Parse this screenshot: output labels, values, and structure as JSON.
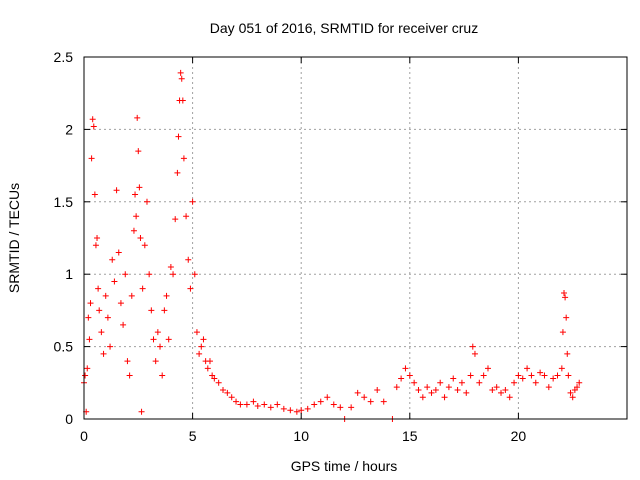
{
  "chart_data": {
    "type": "scatter",
    "title": "Day 051 of 2016, SRMTID for receiver cruz",
    "xlabel": "GPS time / hours",
    "ylabel": "SRMTID / TECUs",
    "xlim": [
      0,
      25
    ],
    "ylim": [
      0,
      2.5
    ],
    "xticks": [
      "0",
      "5",
      "10",
      "15",
      "20"
    ],
    "yticks": [
      "0",
      "0.5",
      "1",
      "1.5",
      "2",
      "2.5"
    ],
    "grid": true,
    "marker": "plus",
    "color": "#ff0000",
    "series": [
      {
        "name": "SRMTID",
        "points": [
          [
            0.0,
            0.25
          ],
          [
            0.05,
            0.3
          ],
          [
            0.1,
            0.05
          ],
          [
            0.15,
            0.35
          ],
          [
            0.2,
            0.7
          ],
          [
            0.25,
            0.55
          ],
          [
            0.3,
            0.8
          ],
          [
            0.35,
            1.8
          ],
          [
            0.4,
            2.07
          ],
          [
            0.45,
            2.02
          ],
          [
            0.5,
            1.55
          ],
          [
            0.55,
            1.2
          ],
          [
            0.6,
            1.25
          ],
          [
            0.65,
            0.9
          ],
          [
            0.7,
            0.75
          ],
          [
            0.8,
            0.6
          ],
          [
            0.9,
            0.45
          ],
          [
            1.0,
            0.85
          ],
          [
            1.1,
            0.7
          ],
          [
            1.2,
            0.5
          ],
          [
            1.3,
            1.1
          ],
          [
            1.4,
            0.95
          ],
          [
            1.5,
            1.58
          ],
          [
            1.6,
            1.15
          ],
          [
            1.7,
            0.8
          ],
          [
            1.8,
            0.65
          ],
          [
            1.9,
            1.0
          ],
          [
            2.0,
            0.4
          ],
          [
            2.1,
            0.3
          ],
          [
            2.2,
            0.85
          ],
          [
            2.3,
            1.3
          ],
          [
            2.35,
            1.55
          ],
          [
            2.4,
            1.4
          ],
          [
            2.45,
            2.08
          ],
          [
            2.5,
            1.85
          ],
          [
            2.55,
            1.6
          ],
          [
            2.6,
            1.25
          ],
          [
            2.65,
            0.05
          ],
          [
            2.7,
            0.9
          ],
          [
            2.8,
            1.2
          ],
          [
            2.9,
            1.5
          ],
          [
            3.0,
            1.0
          ],
          [
            3.1,
            0.75
          ],
          [
            3.2,
            0.55
          ],
          [
            3.3,
            0.4
          ],
          [
            3.4,
            0.6
          ],
          [
            3.5,
            0.5
          ],
          [
            3.6,
            0.3
          ],
          [
            3.7,
            0.75
          ],
          [
            3.8,
            0.85
          ],
          [
            3.9,
            0.55
          ],
          [
            4.0,
            1.05
          ],
          [
            4.1,
            1.0
          ],
          [
            4.2,
            1.38
          ],
          [
            4.3,
            1.7
          ],
          [
            4.35,
            1.95
          ],
          [
            4.4,
            2.2
          ],
          [
            4.45,
            2.39
          ],
          [
            4.5,
            2.35
          ],
          [
            4.55,
            2.2
          ],
          [
            4.6,
            1.8
          ],
          [
            4.7,
            1.4
          ],
          [
            4.8,
            1.1
          ],
          [
            4.9,
            0.9
          ],
          [
            5.0,
            1.5
          ],
          [
            5.1,
            1.0
          ],
          [
            5.2,
            0.6
          ],
          [
            5.3,
            0.45
          ],
          [
            5.4,
            0.5
          ],
          [
            5.5,
            0.55
          ],
          [
            5.6,
            0.4
          ],
          [
            5.7,
            0.35
          ],
          [
            5.8,
            0.4
          ],
          [
            5.9,
            0.3
          ],
          [
            6.0,
            0.28
          ],
          [
            6.2,
            0.25
          ],
          [
            6.4,
            0.2
          ],
          [
            6.6,
            0.18
          ],
          [
            6.8,
            0.15
          ],
          [
            7.0,
            0.12
          ],
          [
            7.2,
            0.1
          ],
          [
            7.5,
            0.1
          ],
          [
            7.8,
            0.12
          ],
          [
            8.0,
            0.09
          ],
          [
            8.3,
            0.1
          ],
          [
            8.6,
            0.08
          ],
          [
            8.9,
            0.1
          ],
          [
            9.2,
            0.07
          ],
          [
            9.5,
            0.06
          ],
          [
            9.8,
            0.05
          ],
          [
            10.0,
            0.06
          ],
          [
            10.3,
            0.07
          ],
          [
            10.6,
            0.1
          ],
          [
            10.9,
            0.12
          ],
          [
            11.2,
            0.15
          ],
          [
            11.5,
            0.1
          ],
          [
            11.8,
            0.08
          ],
          [
            12.0,
            0.0
          ],
          [
            12.3,
            0.08
          ],
          [
            12.6,
            0.18
          ],
          [
            12.9,
            0.15
          ],
          [
            13.2,
            0.12
          ],
          [
            13.5,
            0.2
          ],
          [
            13.8,
            0.12
          ],
          [
            14.2,
            0.0
          ],
          [
            14.4,
            0.22
          ],
          [
            14.6,
            0.28
          ],
          [
            14.8,
            0.35
          ],
          [
            15.0,
            0.3
          ],
          [
            15.2,
            0.25
          ],
          [
            15.4,
            0.2
          ],
          [
            15.6,
            0.15
          ],
          [
            15.8,
            0.22
          ],
          [
            16.0,
            0.18
          ],
          [
            16.2,
            0.2
          ],
          [
            16.4,
            0.25
          ],
          [
            16.6,
            0.15
          ],
          [
            16.8,
            0.22
          ],
          [
            17.0,
            0.28
          ],
          [
            17.2,
            0.2
          ],
          [
            17.4,
            0.25
          ],
          [
            17.6,
            0.18
          ],
          [
            17.8,
            0.3
          ],
          [
            17.9,
            0.5
          ],
          [
            18.0,
            0.45
          ],
          [
            18.2,
            0.25
          ],
          [
            18.4,
            0.3
          ],
          [
            18.6,
            0.35
          ],
          [
            18.8,
            0.2
          ],
          [
            19.0,
            0.22
          ],
          [
            19.2,
            0.18
          ],
          [
            19.4,
            0.2
          ],
          [
            19.6,
            0.15
          ],
          [
            19.8,
            0.25
          ],
          [
            20.0,
            0.3
          ],
          [
            20.2,
            0.28
          ],
          [
            20.4,
            0.35
          ],
          [
            20.6,
            0.3
          ],
          [
            20.8,
            0.25
          ],
          [
            21.0,
            0.32
          ],
          [
            21.2,
            0.3
          ],
          [
            21.4,
            0.22
          ],
          [
            21.6,
            0.28
          ],
          [
            21.8,
            0.3
          ],
          [
            22.0,
            0.35
          ],
          [
            22.05,
            0.6
          ],
          [
            22.1,
            0.87
          ],
          [
            22.15,
            0.84
          ],
          [
            22.2,
            0.7
          ],
          [
            22.25,
            0.45
          ],
          [
            22.3,
            0.3
          ],
          [
            22.4,
            0.18
          ],
          [
            22.5,
            0.15
          ],
          [
            22.6,
            0.2
          ],
          [
            22.7,
            0.22
          ],
          [
            22.8,
            0.25
          ]
        ]
      }
    ]
  }
}
